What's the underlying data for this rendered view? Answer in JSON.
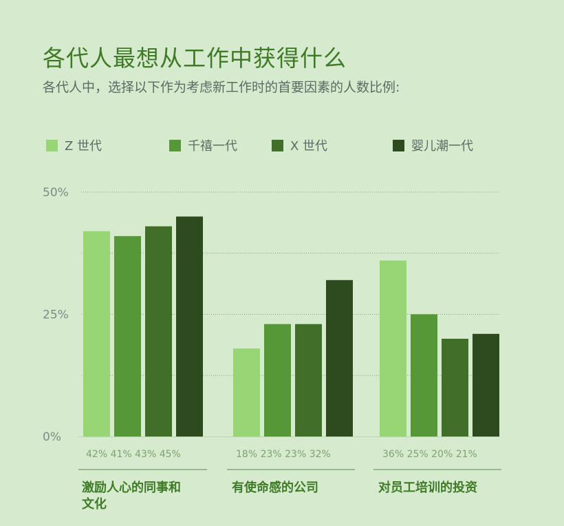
{
  "title": "各代人最想从工作中获得什么",
  "subtitle": "各代人中，选择以下作为考虑新工作时的首要因素的人数比例:",
  "colors": {
    "background": "#d6ebce",
    "title": "#3f7a27",
    "genz": "#97d575",
    "millennials": "#569838",
    "genx": "#416f29",
    "boomers": "#2e4a1f"
  },
  "chart_data": {
    "type": "bar",
    "title": "各代人最想从工作中获得什么",
    "subtitle": "各代人中，选择以下作为考虑新工作时的首要因素的人数比例:",
    "categories": [
      "激励人心的同事和文化",
      "有使命感的公司",
      "对员工培训的投资"
    ],
    "category_lines": [
      [
        "激励人心的同事和",
        "文化"
      ],
      [
        "有使命感的公司"
      ],
      [
        "对员工培训的投资"
      ]
    ],
    "series": [
      {
        "name": "Z 世代",
        "values": [
          42,
          18,
          36
        ]
      },
      {
        "name": "千禧一代",
        "values": [
          41,
          23,
          25
        ]
      },
      {
        "name": "X 世代",
        "values": [
          43,
          23,
          20
        ]
      },
      {
        "name": "婴儿潮一代",
        "values": [
          45,
          32,
          21
        ]
      }
    ],
    "value_labels": [
      [
        "42%",
        "41%",
        "43%",
        "45%"
      ],
      [
        "18%",
        "23%",
        "23%",
        "32%"
      ],
      [
        "36%",
        "25%",
        "20%",
        "21%"
      ]
    ],
    "ylim": [
      0,
      50
    ],
    "yticks": [
      "0%",
      "25%",
      "50%"
    ],
    "ytick_values": [
      0,
      25,
      50
    ],
    "grid": true,
    "legend_position": "top"
  }
}
